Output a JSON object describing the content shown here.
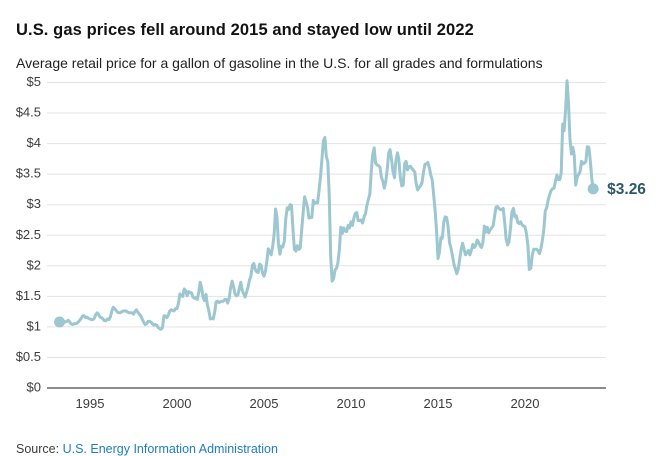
{
  "header": {
    "title": "U.S. gas prices fell around 2015 and stayed low until 2022",
    "subtitle": "Average retail price for a gallon of gasoline in the U.S. for all grades and formulations"
  },
  "footer": {
    "source_label": "Source:",
    "source_link": "U.S. Energy Information Administration"
  },
  "chart_data": {
    "type": "line",
    "title": "U.S. gas prices fell around 2015 and stayed low until 2022",
    "subtitle": "Average retail price for a gallon of gasoline in the U.S. for all grades and formulations",
    "xlabel": "",
    "ylabel": "",
    "grid": true,
    "xlim": [
      1992.5,
      2024.7
    ],
    "ylim": [
      0,
      5
    ],
    "x_ticks": [
      1995,
      2000,
      2005,
      2010,
      2015,
      2020
    ],
    "y_ticks": [
      {
        "value": 0,
        "label": "$0"
      },
      {
        "value": 0.5,
        "label": "$0.5"
      },
      {
        "value": 1,
        "label": "$1"
      },
      {
        "value": 1.5,
        "label": "$1.5"
      },
      {
        "value": 2,
        "label": "$2"
      },
      {
        "value": 2.5,
        "label": "$2.5"
      },
      {
        "value": 3,
        "label": "$3"
      },
      {
        "value": 3.5,
        "label": "$3.5"
      },
      {
        "value": 4,
        "label": "$4"
      },
      {
        "value": 4.5,
        "label": "$4.5"
      },
      {
        "value": 5,
        "label": "$5"
      }
    ],
    "end_label": {
      "text": "$3.26",
      "value": 3.26
    },
    "colors": {
      "line": "#9cc7d0",
      "dot": "#9cc7d0",
      "end_label": "#2e576d",
      "gridline": "#e3e3e3",
      "zero_axis": "#8c8c8c",
      "tick_text": "#3d3d3d"
    },
    "series": [
      {
        "name": "Average retail gasoline price, all grades and formulations ($/gal)",
        "x_start_year": 1993.25,
        "x_step_years": 0.0833333,
        "values": [
          1.08,
          1.1,
          1.1,
          1.09,
          1.08,
          1.09,
          1.11,
          1.08,
          1.05,
          1.04,
          1.05,
          1.05,
          1.06,
          1.08,
          1.11,
          1.14,
          1.18,
          1.18,
          1.15,
          1.16,
          1.14,
          1.13,
          1.12,
          1.12,
          1.14,
          1.2,
          1.23,
          1.2,
          1.16,
          1.15,
          1.13,
          1.1,
          1.1,
          1.13,
          1.12,
          1.16,
          1.25,
          1.32,
          1.3,
          1.27,
          1.24,
          1.23,
          1.23,
          1.25,
          1.26,
          1.26,
          1.26,
          1.24,
          1.23,
          1.23,
          1.23,
          1.21,
          1.25,
          1.28,
          1.24,
          1.21,
          1.18,
          1.13,
          1.08,
          1.04,
          1.05,
          1.09,
          1.09,
          1.08,
          1.05,
          1.03,
          1.04,
          1.03,
          0.99,
          0.97,
          0.96,
          0.99,
          1.18,
          1.18,
          1.15,
          1.19,
          1.26,
          1.28,
          1.27,
          1.26,
          1.3,
          1.3,
          1.38,
          1.54,
          1.51,
          1.5,
          1.62,
          1.59,
          1.51,
          1.58,
          1.56,
          1.56,
          1.49,
          1.47,
          1.48,
          1.45,
          1.56,
          1.73,
          1.64,
          1.48,
          1.43,
          1.53,
          1.36,
          1.26,
          1.13,
          1.14,
          1.13,
          1.24,
          1.41,
          1.42,
          1.4,
          1.41,
          1.42,
          1.42,
          1.45,
          1.45,
          1.39,
          1.47,
          1.64,
          1.75,
          1.66,
          1.54,
          1.51,
          1.52,
          1.63,
          1.73,
          1.6,
          1.54,
          1.49,
          1.57,
          1.65,
          1.77,
          1.83,
          2.01,
          2.04,
          1.94,
          1.9,
          1.89,
          2.03,
          2.01,
          1.88,
          1.83,
          1.91,
          2.08,
          2.28,
          2.22,
          2.18,
          2.32,
          2.51,
          2.93,
          2.79,
          2.34,
          2.19,
          2.32,
          2.31,
          2.4,
          2.76,
          2.95,
          2.92,
          3.0,
          2.99,
          2.59,
          2.27,
          2.24,
          2.33,
          2.27,
          2.29,
          2.59,
          2.86,
          3.13,
          3.05,
          2.96,
          2.78,
          2.79,
          2.79,
          3.07,
          3.02,
          3.04,
          3.03,
          3.24,
          3.46,
          3.76,
          4.05,
          4.1,
          3.79,
          3.7,
          3.17,
          2.15,
          1.75,
          1.79,
          1.93,
          1.96,
          2.05,
          2.27,
          2.63,
          2.53,
          2.62,
          2.57,
          2.56,
          2.66,
          2.62,
          2.72,
          2.66,
          2.78,
          2.86,
          2.87,
          2.74,
          2.74,
          2.75,
          2.7,
          2.8,
          2.85,
          2.99,
          3.09,
          3.17,
          3.55,
          3.82,
          3.93,
          3.68,
          3.65,
          3.64,
          3.61,
          3.45,
          3.38,
          3.27,
          3.38,
          3.58,
          3.85,
          3.9,
          3.73,
          3.54,
          3.44,
          3.72,
          3.85,
          3.75,
          3.45,
          3.31,
          3.32,
          3.67,
          3.71,
          3.57,
          3.62,
          3.63,
          3.59,
          3.57,
          3.53,
          3.34,
          3.24,
          3.28,
          3.31,
          3.36,
          3.53,
          3.66,
          3.67,
          3.69,
          3.61,
          3.49,
          3.41,
          3.17,
          2.91,
          2.59,
          2.12,
          2.22,
          2.46,
          2.45,
          2.72,
          2.8,
          2.79,
          2.64,
          2.37,
          2.29,
          2.16,
          2.03,
          1.95,
          1.87,
          1.95,
          2.11,
          2.27,
          2.37,
          2.27,
          2.18,
          2.22,
          2.25,
          2.18,
          2.25,
          2.35,
          2.3,
          2.33,
          2.42,
          2.39,
          2.33,
          2.3,
          2.38,
          2.65,
          2.55,
          2.63,
          2.54,
          2.59,
          2.62,
          2.65,
          2.8,
          2.96,
          2.97,
          2.94,
          2.92,
          2.92,
          2.94,
          2.71,
          2.44,
          2.34,
          2.39,
          2.62,
          2.88,
          2.94,
          2.8,
          2.82,
          2.71,
          2.69,
          2.72,
          2.67,
          2.65,
          2.64,
          2.53,
          2.33,
          1.94,
          1.96,
          2.17,
          2.27,
          2.27,
          2.27,
          2.25,
          2.2,
          2.28,
          2.42,
          2.59,
          2.9,
          2.95,
          3.08,
          3.16,
          3.23,
          3.26,
          3.27,
          3.38,
          3.49,
          3.41,
          3.41,
          3.52,
          4.32,
          4.21,
          4.55,
          5.03,
          4.67,
          4.09,
          3.83,
          3.94,
          3.8,
          3.32,
          3.45,
          3.5,
          3.54,
          3.71,
          3.67,
          3.68,
          3.71,
          3.95,
          3.94,
          3.74,
          3.44,
          3.26
        ]
      }
    ]
  }
}
